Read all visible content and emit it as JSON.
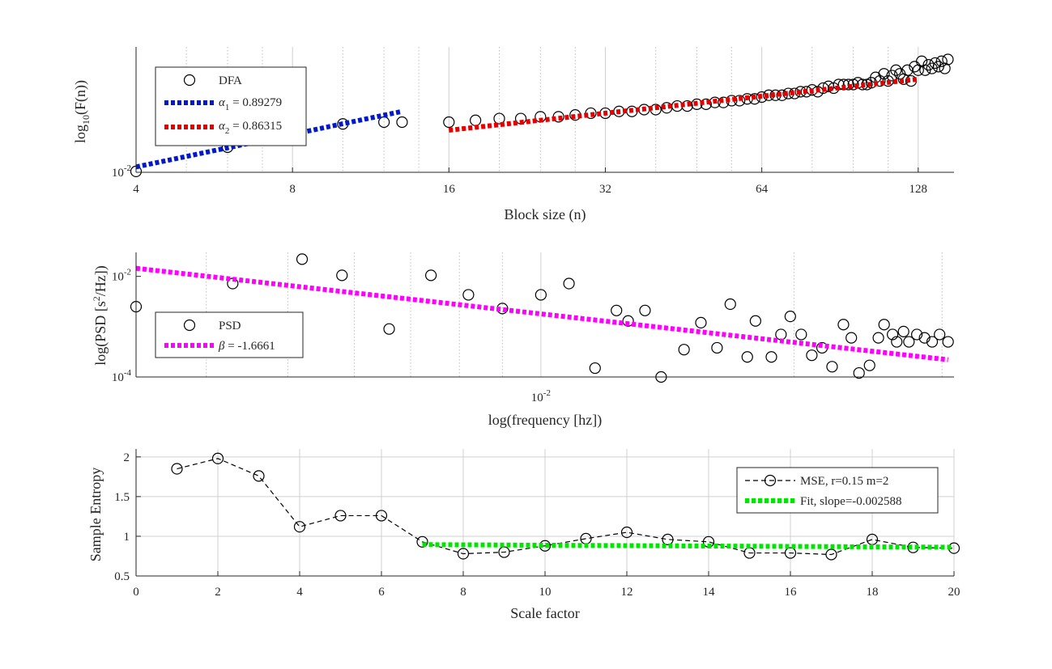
{
  "chart_data": [
    {
      "type": "scatter",
      "xlabel": "Block size (n)",
      "ylabel_main": "log",
      "ylabel_sub": "10",
      "ylabel_rest": "(F(n))",
      "xscale": "log2",
      "xlim": [
        4,
        150
      ],
      "ylim": [
        -2.0,
        -1.3
      ],
      "xticks": [
        4,
        8,
        16,
        32,
        64,
        128
      ],
      "xtick_labels": [
        "4",
        "8",
        "16",
        "32",
        "64",
        "128"
      ],
      "ytick_label_base": "10",
      "ytick_label_exp": "-2",
      "grid": true,
      "legend_placement": "top-left",
      "series": [
        {
          "name": "DFA",
          "style": "markers",
          "color": "#000000",
          "x": [
            4,
            6,
            10,
            12,
            13,
            16,
            18,
            20,
            22,
            24,
            26,
            28,
            30,
            32,
            34,
            36,
            38,
            40,
            42,
            44,
            46,
            48,
            50,
            52,
            54,
            56,
            58,
            60,
            62,
            64,
            66,
            68,
            70,
            72,
            74,
            76,
            78,
            80,
            82,
            84,
            86,
            88,
            90,
            92,
            94,
            96,
            98,
            100,
            102,
            104,
            106,
            108,
            110,
            112,
            114,
            116,
            118,
            120,
            122,
            124,
            126,
            128,
            130,
            132,
            134,
            136,
            138,
            140,
            142,
            144,
            146
          ],
          "y": [
            -1.995,
            -1.86,
            -1.73,
            -1.72,
            -1.72,
            -1.72,
            -1.71,
            -1.7,
            -1.7,
            -1.69,
            -1.69,
            -1.68,
            -1.67,
            -1.67,
            -1.66,
            -1.66,
            -1.65,
            -1.65,
            -1.64,
            -1.63,
            -1.63,
            -1.62,
            -1.62,
            -1.61,
            -1.61,
            -1.6,
            -1.6,
            -1.59,
            -1.59,
            -1.58,
            -1.57,
            -1.57,
            -1.57,
            -1.56,
            -1.56,
            -1.55,
            -1.55,
            -1.54,
            -1.55,
            -1.53,
            -1.52,
            -1.53,
            -1.51,
            -1.51,
            -1.51,
            -1.51,
            -1.5,
            -1.51,
            -1.51,
            -1.5,
            -1.47,
            -1.49,
            -1.45,
            -1.49,
            -1.46,
            -1.43,
            -1.45,
            -1.48,
            -1.43,
            -1.49,
            -1.41,
            -1.43,
            -1.38,
            -1.43,
            -1.4,
            -1.42,
            -1.39,
            -1.41,
            -1.38,
            -1.42,
            -1.37
          ]
        },
        {
          "name": "α₁ = 0.89279",
          "legend_sym": "α",
          "legend_sub": "1",
          "legend_rest": " = 0.89279",
          "style": "dotted-line",
          "color": "#0019cc",
          "x": [
            4,
            13
          ],
          "y": [
            -1.97,
            -1.66
          ]
        },
        {
          "name": "α₂ = 0.86315",
          "legend_sym": "α",
          "legend_sub": "2",
          "legend_rest": " = 0.86315",
          "style": "dotted-line",
          "color": "#e60000",
          "x": [
            16,
            128
          ],
          "y": [
            -1.765,
            -1.48
          ]
        }
      ]
    },
    {
      "type": "scatter",
      "xlabel": "log(frequency [hz])",
      "ylabel_pre": "log(PSD [s",
      "ylabel_sup": "2",
      "ylabel_post": "/Hz])",
      "xscale": "log10",
      "yscale": "log10",
      "xlim": [
        0.0033,
        0.031
      ],
      "ylim": [
        0.0001,
        0.03
      ],
      "xtick_label_base": "10",
      "xtick_label_exp": "-2",
      "ytick_labels": [
        {
          "value": 0.01,
          "base": "10",
          "exp": "-2"
        },
        {
          "value": 0.0001,
          "base": "10",
          "exp": "-4"
        }
      ],
      "grid": true,
      "legend_placement": "lower-left",
      "series": [
        {
          "name": "PSD",
          "style": "markers",
          "color": "#000000",
          "x": [
            0.0033,
            0.0043,
            0.0052,
            0.0058,
            0.0066,
            0.0074,
            0.0082,
            0.009,
            0.01,
            0.0108,
            0.0116,
            0.0123,
            0.0127,
            0.0133,
            0.0139,
            0.0148,
            0.0155,
            0.0162,
            0.0168,
            0.0176,
            0.018,
            0.0188,
            0.0193,
            0.0198,
            0.0204,
            0.021,
            0.0216,
            0.0222,
            0.0229,
            0.0234,
            0.0239,
            0.0246,
            0.0252,
            0.0256,
            0.0262,
            0.0265,
            0.027,
            0.0274,
            0.028,
            0.0286,
            0.0292,
            0.0298,
            0.0305
          ],
          "y": [
            0.0025,
            0.0072,
            0.022,
            0.0105,
            0.0009,
            0.0105,
            0.0043,
            0.0023,
            0.0043,
            0.0072,
            0.00015,
            0.0021,
            0.0013,
            0.0021,
            0.0001,
            0.00035,
            0.0012,
            0.00038,
            0.0028,
            0.00025,
            0.0013,
            0.00025,
            0.0007,
            0.0016,
            0.0007,
            0.00027,
            0.00038,
            0.00016,
            0.0011,
            0.0006,
            0.00012,
            0.00017,
            0.0006,
            0.0011,
            0.0007,
            0.0005,
            0.0008,
            0.0005,
            0.0007,
            0.0006,
            0.0005,
            0.0007,
            0.0005
          ]
        },
        {
          "name": "β = -1.6661",
          "legend_sym": "β",
          "legend_rest": " = -1.6661",
          "style": "dotted-line",
          "color": "#ff00ff",
          "x": [
            0.0033,
            0.0305
          ],
          "y": [
            0.0145,
            0.00022
          ]
        }
      ]
    },
    {
      "type": "line",
      "xlabel": "Scale factor",
      "ylabel": "Sample Entropy",
      "xlim": [
        0,
        20
      ],
      "ylim": [
        0.5,
        2.1
      ],
      "xticks": [
        0,
        2,
        4,
        6,
        8,
        10,
        12,
        14,
        16,
        18,
        20
      ],
      "xtick_labels": [
        "0",
        "2",
        "4",
        "6",
        "8",
        "10",
        "12",
        "14",
        "16",
        "18",
        "20"
      ],
      "yticks": [
        0.5,
        1,
        1.5,
        2
      ],
      "ytick_labels": [
        "0.5",
        "1",
        "1.5",
        "2"
      ],
      "grid": true,
      "legend_placement": "top-right",
      "series": [
        {
          "name": "MSE, r=0.15 m=2",
          "style": "dashed-markers",
          "color": "#000000",
          "x": [
            1,
            2,
            3,
            4,
            5,
            6,
            7,
            8,
            9,
            10,
            11,
            12,
            13,
            14,
            15,
            16,
            17,
            18,
            19,
            20
          ],
          "y": [
            1.85,
            1.98,
            1.76,
            1.12,
            1.26,
            1.26,
            0.93,
            0.78,
            0.8,
            0.88,
            0.97,
            1.05,
            0.96,
            0.93,
            0.79,
            0.79,
            0.77,
            0.96,
            0.86,
            0.85
          ]
        },
        {
          "name": "Fit, slope=-0.002588",
          "style": "dotted-line",
          "color": "#00e600",
          "x": [
            7,
            20
          ],
          "y": [
            0.895,
            0.862
          ]
        }
      ]
    }
  ]
}
